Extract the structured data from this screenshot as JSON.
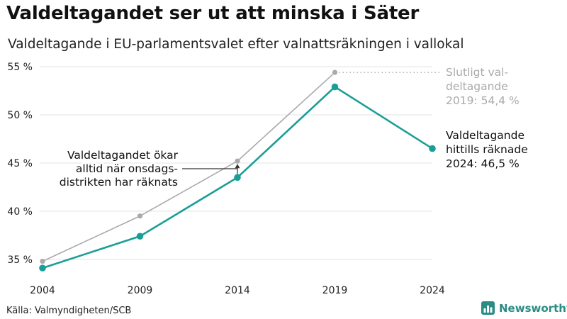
{
  "title": "Valdeltagandet ser ut att minska i Säter",
  "subtitle": "Valdeltagande i EU-parlamentsvalet efter valnattsräkningen i vallokal",
  "source": "Källa: Valmyndigheten/SCB",
  "brand": {
    "name": "Newsworthy",
    "color": "#2a8c84"
  },
  "chart_data": {
    "type": "line",
    "x": [
      2004,
      2009,
      2014,
      2019,
      2024
    ],
    "ylim": [
      33.3,
      55
    ],
    "yticks": [
      35,
      40,
      45,
      50,
      55
    ],
    "ytick_labels": [
      "35 %",
      "40 %",
      "45 %",
      "50 %",
      "55 %"
    ],
    "xtick_labels": [
      "2004",
      "2009",
      "2014",
      "2019",
      "2024"
    ],
    "grid": true,
    "series": [
      {
        "key": "final",
        "color": "#aaaaaa",
        "values": [
          34.8,
          39.5,
          45.2,
          54.4,
          null
        ]
      },
      {
        "key": "preliminary",
        "color": "#1a9e96",
        "values": [
          34.1,
          37.4,
          43.5,
          52.9,
          46.5
        ]
      }
    ],
    "annotations": {
      "final_2019": [
        "Slutligt val-",
        "deltagande",
        "2019: 54,4 %"
      ],
      "current_2024": [
        "Valdeltagande",
        "hittills räknade",
        "2024: 46,5 %"
      ],
      "gap_note": [
        "Valdeltagandet ökar",
        "alltid när onsdags-",
        "distrikten har räknats"
      ]
    }
  }
}
